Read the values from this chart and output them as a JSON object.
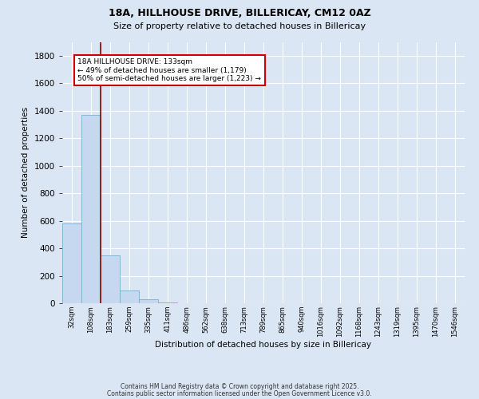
{
  "title1": "18A, HILLHOUSE DRIVE, BILLERICAY, CM12 0AZ",
  "title2": "Size of property relative to detached houses in Billericay",
  "xlabel": "Distribution of detached houses by size in Billericay",
  "ylabel": "Number of detached properties",
  "bar_color": "#c5d8f0",
  "bar_edge_color": "#7bafd4",
  "bg_color": "#dae6f3",
  "fig_color": "#dae6f3",
  "grid_color": "white",
  "vline_color": "#8b0000",
  "vline_x_idx": 1.5,
  "annotation_text": "18A HILLHOUSE DRIVE: 133sqm\n← 49% of detached houses are smaller (1,179)\n50% of semi-detached houses are larger (1,223) →",
  "annotation_box_color": "white",
  "annotation_box_edge": "#cc0000",
  "categories": [
    "32sqm",
    "108sqm",
    "183sqm",
    "259sqm",
    "335sqm",
    "411sqm",
    "486sqm",
    "562sqm",
    "638sqm",
    "713sqm",
    "789sqm",
    "865sqm",
    "940sqm",
    "1016sqm",
    "1092sqm",
    "1168sqm",
    "1243sqm",
    "1319sqm",
    "1395sqm",
    "1470sqm",
    "1546sqm"
  ],
  "values": [
    580,
    1370,
    350,
    90,
    28,
    5,
    2,
    0,
    0,
    0,
    0,
    0,
    0,
    0,
    0,
    0,
    0,
    0,
    0,
    0,
    0
  ],
  "ylim": [
    0,
    1900
  ],
  "yticks": [
    0,
    200,
    400,
    600,
    800,
    1000,
    1200,
    1400,
    1600,
    1800
  ],
  "footer1": "Contains HM Land Registry data © Crown copyright and database right 2025.",
  "footer2": "Contains public sector information licensed under the Open Government Licence v3.0."
}
